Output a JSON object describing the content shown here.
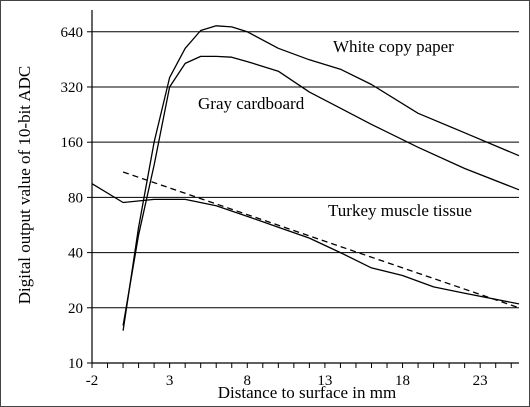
{
  "chart_data": {
    "type": "line",
    "title": "",
    "xlabel": "Distance to surface in mm",
    "ylabel": "Digital output value of 10-bit ADC",
    "xlim": [
      -2,
      25.5
    ],
    "ylim": [
      10,
      800
    ],
    "yscale": "log2",
    "xticks": [
      -2,
      3,
      8,
      13,
      18,
      23
    ],
    "yticks": [
      10,
      20,
      40,
      80,
      160,
      320,
      640
    ],
    "grid": "horizontal",
    "legend": "none",
    "series": [
      {
        "name": "White copy paper",
        "style": "solid",
        "x": [
          0,
          1,
          2,
          3,
          4,
          5,
          6,
          7,
          8,
          10,
          12,
          14,
          16,
          19,
          22,
          25.5
        ],
        "y": [
          15,
          55,
          160,
          360,
          520,
          650,
          690,
          680,
          640,
          520,
          450,
          400,
          330,
          230,
          180,
          135
        ]
      },
      {
        "name": "Gray cardboard",
        "style": "solid",
        "x": [
          0,
          1,
          2,
          3,
          4,
          5,
          6,
          7,
          8,
          10,
          12,
          14,
          16,
          19,
          22,
          25.5
        ],
        "y": [
          16,
          50,
          120,
          320,
          430,
          470,
          470,
          465,
          440,
          390,
          300,
          245,
          200,
          150,
          115,
          88
        ]
      },
      {
        "name": "Turkey muscle tissue",
        "style": "solid",
        "x": [
          -2,
          0,
          2,
          4,
          6,
          8,
          10,
          12,
          14,
          16,
          18,
          20,
          22,
          25.5
        ],
        "y": [
          95,
          75,
          78,
          78,
          72,
          63,
          55,
          48,
          40,
          33,
          30,
          26,
          24,
          21
        ]
      },
      {
        "name": "",
        "style": "dashed",
        "x": [
          0,
          25.5
        ],
        "y": [
          110,
          20
        ]
      }
    ]
  }
}
